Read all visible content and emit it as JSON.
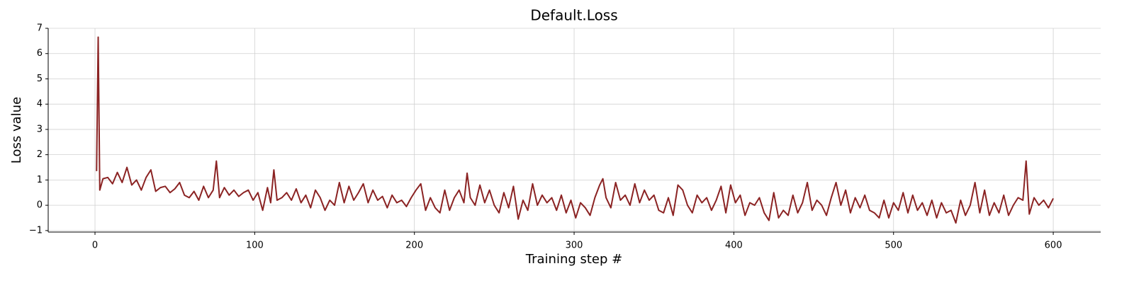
{
  "chart_data": {
    "type": "line",
    "title": "Default.Loss",
    "x_label": "Training step #",
    "y_label": "Loss value",
    "x": [
      1,
      2,
      3,
      5,
      8,
      11,
      14,
      17,
      20,
      23,
      26,
      29,
      32,
      35,
      38,
      41,
      44,
      47,
      50,
      53,
      56,
      59,
      62,
      65,
      68,
      71,
      74,
      76,
      78,
      81,
      84,
      87,
      90,
      93,
      96,
      99,
      102,
      105,
      108,
      110,
      112,
      114,
      117,
      120,
      123,
      126,
      129,
      132,
      135,
      138,
      141,
      144,
      147,
      150,
      153,
      156,
      159,
      162,
      165,
      168,
      171,
      174,
      177,
      180,
      183,
      186,
      189,
      192,
      195,
      198,
      201,
      204,
      207,
      210,
      213,
      216,
      219,
      222,
      225,
      228,
      231,
      233,
      235,
      238,
      241,
      244,
      247,
      250,
      253,
      256,
      259,
      262,
      265,
      268,
      271,
      274,
      277,
      280,
      283,
      286,
      289,
      292,
      295,
      298,
      301,
      304,
      307,
      310,
      313,
      316,
      318,
      320,
      323,
      326,
      329,
      332,
      335,
      338,
      341,
      344,
      347,
      350,
      353,
      356,
      359,
      362,
      365,
      368,
      371,
      374,
      377,
      380,
      383,
      386,
      389,
      392,
      395,
      398,
      401,
      404,
      407,
      410,
      413,
      416,
      419,
      422,
      425,
      428,
      431,
      434,
      437,
      440,
      443,
      446,
      449,
      452,
      455,
      458,
      461,
      464,
      467,
      470,
      473,
      476,
      479,
      482,
      485,
      488,
      491,
      494,
      497,
      500,
      503,
      506,
      509,
      512,
      515,
      518,
      521,
      524,
      527,
      530,
      533,
      536,
      539,
      542,
      545,
      548,
      551,
      554,
      557,
      560,
      563,
      566,
      569,
      572,
      575,
      578,
      581,
      583,
      585,
      588,
      591,
      594,
      597,
      600
    ],
    "series": [
      {
        "name": "Loss",
        "color": "#8b2323",
        "values": [
          1.35,
          6.65,
          0.6,
          1.05,
          1.1,
          0.85,
          1.3,
          0.9,
          1.5,
          0.8,
          1.0,
          0.6,
          1.1,
          1.4,
          0.55,
          0.7,
          0.75,
          0.5,
          0.65,
          0.9,
          0.4,
          0.3,
          0.55,
          0.2,
          0.75,
          0.3,
          0.6,
          1.75,
          0.3,
          0.7,
          0.4,
          0.6,
          0.35,
          0.5,
          0.6,
          0.2,
          0.5,
          -0.2,
          0.7,
          0.1,
          1.4,
          0.2,
          0.3,
          0.5,
          0.2,
          0.65,
          0.1,
          0.4,
          -0.1,
          0.6,
          0.3,
          -0.2,
          0.2,
          0.0,
          0.9,
          0.1,
          0.75,
          0.2,
          0.5,
          0.85,
          0.1,
          0.6,
          0.2,
          0.35,
          -0.1,
          0.4,
          0.1,
          0.2,
          -0.05,
          0.3,
          0.6,
          0.85,
          -0.2,
          0.3,
          -0.1,
          -0.3,
          0.6,
          -0.2,
          0.3,
          0.6,
          0.1,
          1.27,
          0.3,
          0.0,
          0.8,
          0.1,
          0.6,
          0.0,
          -0.3,
          0.5,
          -0.1,
          0.75,
          -0.55,
          0.2,
          -0.2,
          0.85,
          0.0,
          0.4,
          0.1,
          0.3,
          -0.2,
          0.4,
          -0.3,
          0.2,
          -0.5,
          0.1,
          -0.1,
          -0.4,
          0.3,
          0.8,
          1.05,
          0.3,
          -0.1,
          0.9,
          0.2,
          0.4,
          0.0,
          0.85,
          0.1,
          0.6,
          0.2,
          0.4,
          -0.2,
          -0.3,
          0.3,
          -0.4,
          0.8,
          0.6,
          0.0,
          -0.3,
          0.4,
          0.1,
          0.3,
          -0.2,
          0.2,
          0.75,
          -0.3,
          0.8,
          0.1,
          0.4,
          -0.4,
          0.1,
          0.0,
          0.3,
          -0.3,
          -0.6,
          0.5,
          -0.5,
          -0.2,
          -0.4,
          0.4,
          -0.3,
          0.1,
          0.9,
          -0.2,
          0.2,
          0.0,
          -0.4,
          0.3,
          0.9,
          0.0,
          0.6,
          -0.3,
          0.3,
          -0.1,
          0.4,
          -0.2,
          -0.3,
          -0.5,
          0.2,
          -0.5,
          0.1,
          -0.2,
          0.5,
          -0.3,
          0.4,
          -0.2,
          0.1,
          -0.4,
          0.2,
          -0.5,
          0.1,
          -0.3,
          -0.2,
          -0.7,
          0.2,
          -0.4,
          0.0,
          0.9,
          -0.3,
          0.6,
          -0.4,
          0.1,
          -0.3,
          0.4,
          -0.4,
          0.0,
          0.3,
          0.2,
          1.75,
          -0.35,
          0.3,
          0.0,
          0.2,
          -0.1,
          0.27
        ]
      }
    ],
    "xlim": [
      -29.3,
      629.7
    ],
    "ylim": [
      -1.06,
      7
    ],
    "xticks": [
      0,
      100,
      200,
      300,
      400,
      500,
      600
    ],
    "yticks": [
      {
        "value": -1,
        "label": "−1"
      },
      0,
      1,
      2,
      3,
      4,
      5,
      6,
      7
    ],
    "grid": true
  }
}
